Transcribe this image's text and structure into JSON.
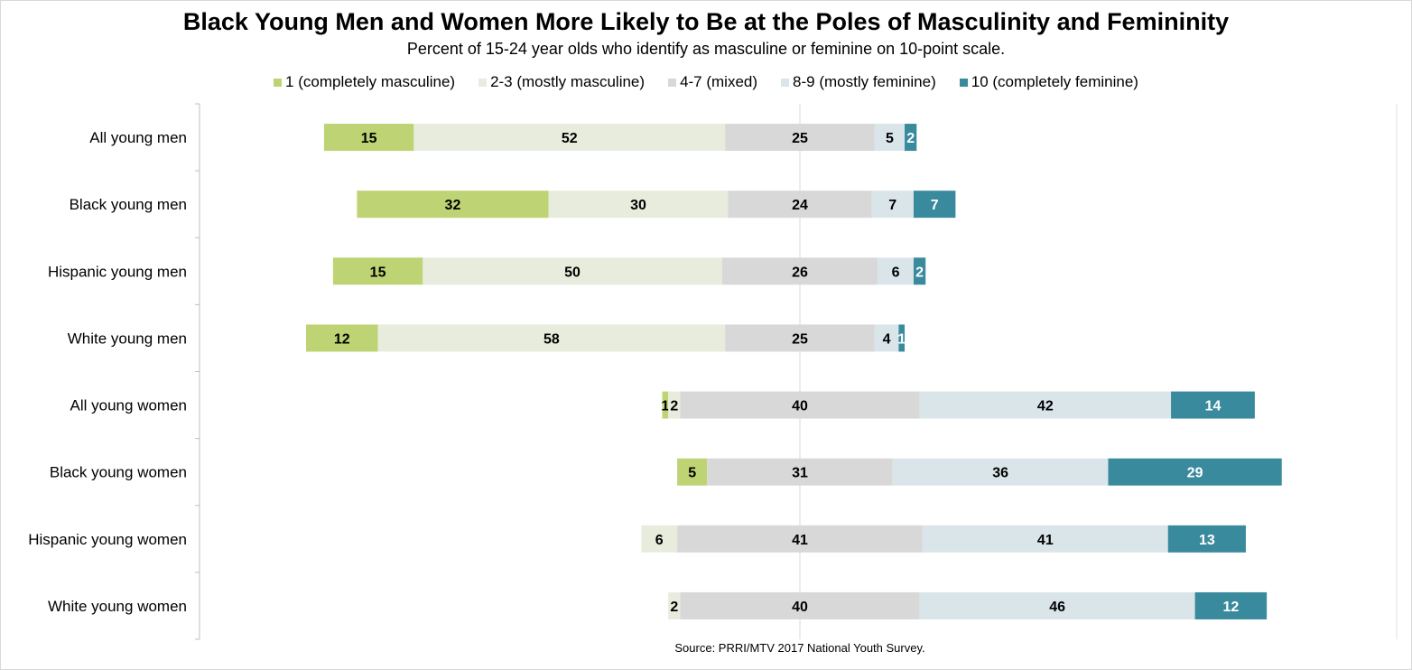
{
  "title": "Black Young Men and Women More Likely to Be at the Poles of Masculinity and Femininity",
  "subtitle": "Percent of 15-24 year olds who identify as masculine or feminine on 10-point scale.",
  "source": "Source: PRRI/MTV 2017 National Youth Survey.",
  "chart_data": {
    "type": "bar",
    "orientation": "horizontal",
    "stacked": "diverging",
    "categories": [
      "All young men",
      "Black young men",
      "Hispanic young men",
      "White young men",
      "All young women",
      "Black young women",
      "Hispanic young women",
      "White young women"
    ],
    "series": [
      {
        "name": "1 (completely masculine)",
        "color": "#bed373",
        "values": [
          15,
          32,
          15,
          12,
          1,
          5,
          0,
          0
        ],
        "labels": [
          "15",
          "32",
          "15",
          "12",
          "1",
          "5",
          "",
          ""
        ]
      },
      {
        "name": "2-3 (mostly masculine)",
        "color": "#e8ecdd",
        "values": [
          52,
          30,
          50,
          58,
          2,
          0,
          6,
          2
        ],
        "labels": [
          "52",
          "30",
          "50",
          "58",
          "2",
          "",
          "6",
          "2"
        ]
      },
      {
        "name": "4-7 (mixed)",
        "color": "#d8d8d8",
        "values": [
          25,
          24,
          26,
          25,
          40,
          31,
          41,
          40
        ],
        "labels": [
          "25",
          "24",
          "26",
          "25",
          "40",
          "31",
          "41",
          "40"
        ]
      },
      {
        "name": "8-9 (mostly feminine)",
        "color": "#dae5ea",
        "values": [
          5,
          7,
          6,
          4,
          42,
          36,
          41,
          46
        ],
        "labels": [
          "5",
          "7",
          "6",
          "4",
          "42",
          "36",
          "41",
          "46"
        ]
      },
      {
        "name": "10 (completely feminine)",
        "color": "#3a8a9e",
        "values": [
          2,
          7,
          2,
          1,
          14,
          29,
          13,
          12
        ],
        "labels": [
          "2",
          "7",
          "2",
          "1",
          "14",
          "29",
          "13",
          "12"
        ]
      }
    ],
    "center": "middle of 4-7 (mixed) segment",
    "grid": false,
    "legend_position": "top"
  }
}
